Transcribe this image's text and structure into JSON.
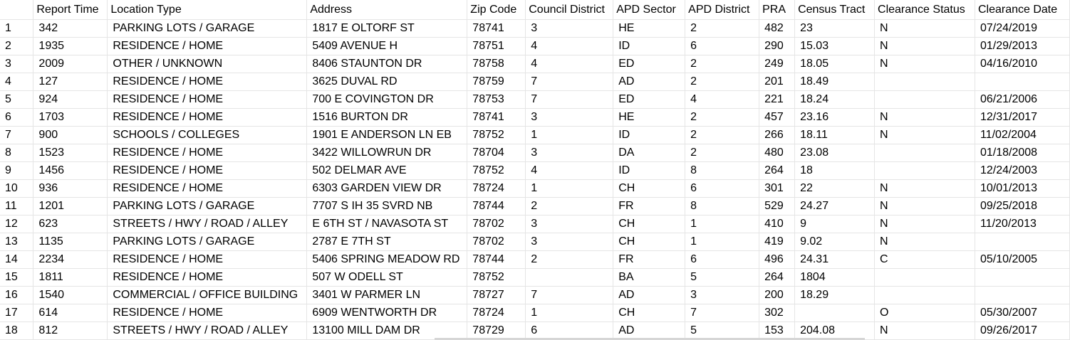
{
  "grid": {
    "columns": [
      {
        "key": "row",
        "label": ""
      },
      {
        "key": "report_time",
        "label": "Report Time"
      },
      {
        "key": "location_type",
        "label": "Location Type"
      },
      {
        "key": "address",
        "label": "Address"
      },
      {
        "key": "zip_code",
        "label": "Zip Code"
      },
      {
        "key": "council_district",
        "label": "Council District"
      },
      {
        "key": "apd_sector",
        "label": "APD Sector"
      },
      {
        "key": "apd_district",
        "label": "APD District"
      },
      {
        "key": "pra",
        "label": "PRA"
      },
      {
        "key": "census_tract",
        "label": "Census Tract"
      },
      {
        "key": "clearance_status",
        "label": "Clearance Status"
      },
      {
        "key": "clearance_date",
        "label": "Clearance Date"
      }
    ],
    "rows": [
      [
        "1",
        "342",
        "PARKING LOTS / GARAGE",
        "1817 E OLTORF ST",
        "78741",
        "3",
        "HE",
        "2",
        "482",
        "23",
        "N",
        "07/24/2019"
      ],
      [
        "2",
        "1935",
        "RESIDENCE / HOME",
        "5409 AVENUE H",
        "78751",
        "4",
        "ID",
        "6",
        "290",
        "15.03",
        "N",
        "01/29/2013"
      ],
      [
        "3",
        "2009",
        "OTHER / UNKNOWN",
        "8406 STAUNTON DR",
        "78758",
        "4",
        "ED",
        "2",
        "249",
        "18.05",
        "N",
        "04/16/2010"
      ],
      [
        "4",
        "127",
        "RESIDENCE / HOME",
        "3625 DUVAL RD",
        "78759",
        "7",
        "AD",
        "2",
        "201",
        "18.49",
        "",
        ""
      ],
      [
        "5",
        "924",
        "RESIDENCE / HOME",
        "700 E COVINGTON DR",
        "78753",
        "7",
        "ED",
        "4",
        "221",
        "18.24",
        "",
        "06/21/2006"
      ],
      [
        "6",
        "1703",
        "RESIDENCE / HOME",
        "1516 BURTON DR",
        "78741",
        "3",
        "HE",
        "2",
        "457",
        "23.16",
        "N",
        "12/31/2017"
      ],
      [
        "7",
        "900",
        "SCHOOLS / COLLEGES",
        "1901 E ANDERSON LN EB",
        "78752",
        "1",
        "ID",
        "2",
        "266",
        "18.11",
        "N",
        "11/02/2004"
      ],
      [
        "8",
        "1523",
        "RESIDENCE / HOME",
        "3422 WILLOWRUN DR",
        "78704",
        "3",
        "DA",
        "2",
        "480",
        "23.08",
        "",
        "01/18/2008"
      ],
      [
        "9",
        "1456",
        "RESIDENCE / HOME",
        "502 DELMAR AVE",
        "78752",
        "4",
        "ID",
        "8",
        "264",
        "18",
        "",
        "12/24/2003"
      ],
      [
        "10",
        "936",
        "RESIDENCE / HOME",
        "6303 GARDEN VIEW DR",
        "78724",
        "1",
        "CH",
        "6",
        "301",
        "22",
        "N",
        "10/01/2013"
      ],
      [
        "11",
        "1201",
        "PARKING LOTS / GARAGE",
        "7707 S IH 35 SVRD NB",
        "78744",
        "2",
        "FR",
        "8",
        "529",
        "24.27",
        "N",
        "09/25/2018"
      ],
      [
        "12",
        "623",
        "STREETS / HWY / ROAD / ALLEY",
        "E 6TH ST / NAVASOTA ST",
        "78702",
        "3",
        "CH",
        "1",
        "410",
        "9",
        "N",
        "11/20/2013"
      ],
      [
        "13",
        "1135",
        "PARKING LOTS / GARAGE",
        "2787 E 7TH ST",
        "78702",
        "3",
        "CH",
        "1",
        "419",
        "9.02",
        "N",
        ""
      ],
      [
        "14",
        "2234",
        "RESIDENCE / HOME",
        "5406 SPRING MEADOW RD",
        "78744",
        "2",
        "FR",
        "6",
        "496",
        "24.31",
        "C",
        "05/10/2005"
      ],
      [
        "15",
        "1811",
        "RESIDENCE / HOME",
        "507 W ODELL ST",
        "78752",
        "",
        "BA",
        "5",
        "264",
        "1804",
        "",
        ""
      ],
      [
        "16",
        "1540",
        "COMMERCIAL / OFFICE BUILDING",
        "3401 W PARMER LN",
        "78727",
        "7",
        "AD",
        "3",
        "200",
        "18.29",
        "",
        ""
      ],
      [
        "17",
        "614",
        "RESIDENCE / HOME",
        "6909 WENTWORTH DR",
        "78724",
        "1",
        "CH",
        "7",
        "302",
        "",
        "O",
        "05/30/2007"
      ],
      [
        "18",
        "812",
        "STREETS / HWY / ROAD / ALLEY",
        "13100 MILL DAM DR",
        "78729",
        "6",
        "AD",
        "5",
        "153",
        "204.08",
        "N",
        "09/26/2017"
      ]
    ]
  }
}
